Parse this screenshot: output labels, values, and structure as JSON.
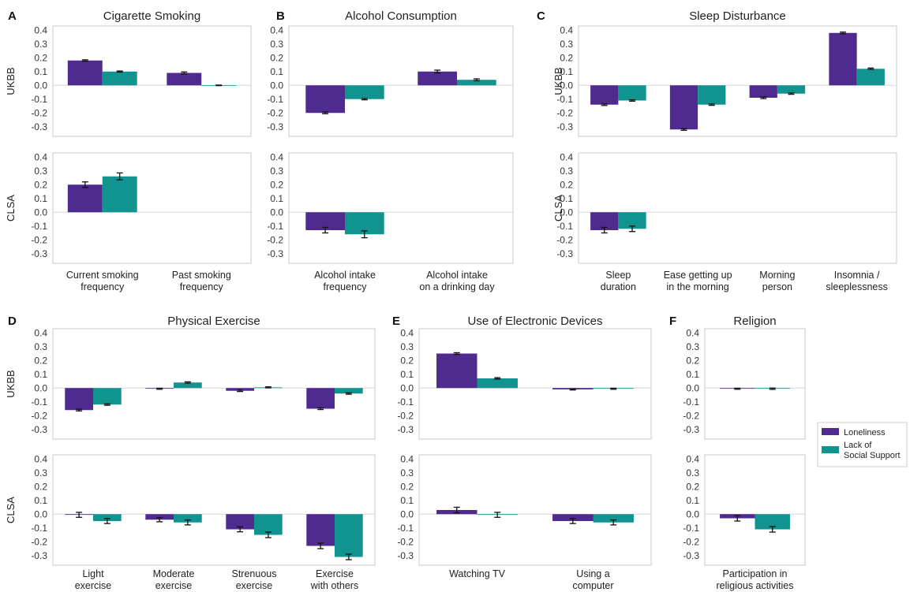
{
  "colors": {
    "loneliness": "#4f2a8f",
    "support": "#11948f",
    "axis": "#c8c8c8",
    "zero": "#d6d6d6",
    "error": "#111111"
  },
  "legend": {
    "items": [
      "Loneliness",
      "Lack of\nSocial Support"
    ]
  },
  "row_labels": [
    "UKBB",
    "CLSA"
  ],
  "chart_data": [
    {
      "type": "bar",
      "panel": "A",
      "title": "Cigarette Smoking",
      "categories": [
        "Current smoking\nfrequency",
        "Past smoking\nfrequency"
      ],
      "ylim": [
        -0.37,
        0.43
      ],
      "yticks": [
        -0.3,
        -0.2,
        -0.1,
        0.0,
        0.1,
        0.2,
        0.3,
        0.4
      ],
      "UKBB": {
        "Loneliness": [
          0.18,
          0.09
        ],
        "Lack of Social Support": [
          0.1,
          0.0
        ],
        "err_Loneliness": [
          0.005,
          0.007
        ],
        "err_Lack of Social Support": [
          0.004,
          0.002
        ]
      },
      "CLSA": {
        "Loneliness": [
          0.2,
          null
        ],
        "Lack of Social Support": [
          0.26,
          null
        ],
        "err_Loneliness": [
          0.02,
          null
        ],
        "err_Lack of Social Support": [
          0.025,
          null
        ]
      }
    },
    {
      "type": "bar",
      "panel": "B",
      "title": "Alcohol Consumption",
      "categories": [
        "Alcohol intake\nfrequency",
        "Alcohol intake\non a drinking day"
      ],
      "ylim": [
        -0.37,
        0.43
      ],
      "yticks": [
        -0.3,
        -0.2,
        -0.1,
        0.0,
        0.1,
        0.2,
        0.3,
        0.4
      ],
      "UKBB": {
        "Loneliness": [
          -0.2,
          0.1
        ],
        "Lack of Social Support": [
          -0.1,
          0.04
        ],
        "err_Loneliness": [
          0.006,
          0.01
        ],
        "err_Lack of Social Support": [
          0.005,
          0.007
        ]
      },
      "CLSA": {
        "Loneliness": [
          -0.13,
          null
        ],
        "Lack of Social Support": [
          -0.16,
          null
        ],
        "err_Loneliness": [
          0.02,
          null
        ],
        "err_Lack of Social Support": [
          0.025,
          null
        ]
      }
    },
    {
      "type": "bar",
      "panel": "C",
      "title": "Sleep Disturbance",
      "categories": [
        "Sleep\nduration",
        "Ease getting up\nin the morning",
        "Morning\nperson",
        "Insomnia /\nsleeplessness"
      ],
      "ylim": [
        -0.37,
        0.43
      ],
      "yticks": [
        -0.3,
        -0.2,
        -0.1,
        0.0,
        0.1,
        0.2,
        0.3,
        0.4
      ],
      "UKBB": {
        "Loneliness": [
          -0.14,
          -0.32,
          -0.09,
          0.38
        ],
        "Lack of Social Support": [
          -0.11,
          -0.14,
          -0.06,
          0.12
        ],
        "err_Loneliness": [
          0.006,
          0.006,
          0.006,
          0.006
        ],
        "err_Lack of Social Support": [
          0.005,
          0.005,
          0.005,
          0.005
        ]
      },
      "CLSA": {
        "Loneliness": [
          -0.13,
          null,
          null,
          null
        ],
        "Lack of Social Support": [
          -0.12,
          null,
          null,
          null
        ],
        "err_Loneliness": [
          0.02,
          null,
          null,
          null
        ],
        "err_Lack of Social Support": [
          0.02,
          null,
          null,
          null
        ]
      }
    },
    {
      "type": "bar",
      "panel": "D",
      "title": "Physical Exercise",
      "categories": [
        "Light\nexercise",
        "Moderate\nexercise",
        "Strenuous\nexercise",
        "Exercise\nwith others"
      ],
      "ylim": [
        -0.37,
        0.43
      ],
      "yticks": [
        -0.3,
        -0.2,
        -0.1,
        0.0,
        0.1,
        0.2,
        0.3,
        0.4
      ],
      "UKBB": {
        "Loneliness": [
          -0.16,
          -0.005,
          -0.02,
          -0.15
        ],
        "Lack of Social Support": [
          -0.12,
          0.04,
          0.005,
          -0.04
        ],
        "err_Loneliness": [
          0.006,
          0.004,
          0.005,
          0.006
        ],
        "err_Lack of Social Support": [
          0.005,
          0.005,
          0.004,
          0.005
        ]
      },
      "CLSA": {
        "Loneliness": [
          -0.005,
          -0.04,
          -0.11,
          -0.23
        ],
        "Lack of Social Support": [
          -0.05,
          -0.06,
          -0.15,
          -0.31
        ],
        "err_Loneliness": [
          0.018,
          0.015,
          0.018,
          0.02
        ],
        "err_Lack of Social Support": [
          0.018,
          0.018,
          0.02,
          0.02
        ]
      }
    },
    {
      "type": "bar",
      "panel": "E",
      "title": "Use of Electronic Devices",
      "categories": [
        "Watching TV",
        "Using a\ncomputer"
      ],
      "ylim": [
        -0.37,
        0.43
      ],
      "yticks": [
        -0.3,
        -0.2,
        -0.1,
        0.0,
        0.1,
        0.2,
        0.3,
        0.4
      ],
      "UKBB": {
        "Loneliness": [
          0.25,
          -0.01
        ],
        "Lack of Social Support": [
          0.07,
          -0.005
        ],
        "err_Loneliness": [
          0.006,
          0.004
        ],
        "err_Lack of Social Support": [
          0.005,
          0.004
        ]
      },
      "CLSA": {
        "Loneliness": [
          0.03,
          -0.05
        ],
        "Lack of Social Support": [
          -0.005,
          -0.06
        ],
        "err_Loneliness": [
          0.02,
          0.018
        ],
        "err_Lack of Social Support": [
          0.018,
          0.018
        ]
      }
    },
    {
      "type": "bar",
      "panel": "F",
      "title": "Religion",
      "categories": [
        "Participation in\nreligious activities"
      ],
      "ylim": [
        -0.37,
        0.43
      ],
      "yticks": [
        -0.3,
        -0.2,
        -0.1,
        0.0,
        0.1,
        0.2,
        0.3,
        0.4
      ],
      "UKBB": {
        "Loneliness": [
          -0.005
        ],
        "Lack of Social Support": [
          -0.005
        ],
        "err_Loneliness": [
          0.004
        ],
        "err_Lack of Social Support": [
          0.005
        ]
      },
      "CLSA": {
        "Loneliness": [
          -0.03
        ],
        "Lack of Social Support": [
          -0.11
        ],
        "err_Loneliness": [
          0.02
        ],
        "err_Lack of Social Support": [
          0.02
        ]
      }
    }
  ]
}
